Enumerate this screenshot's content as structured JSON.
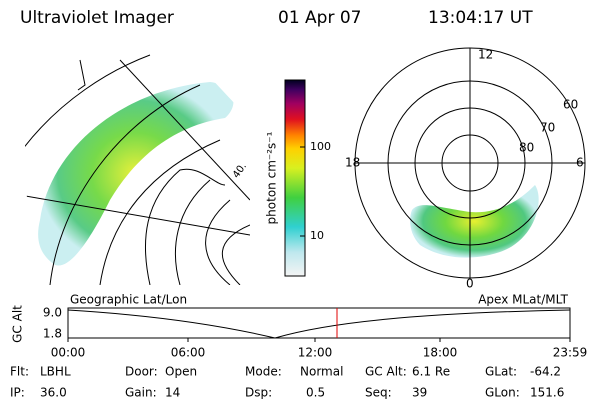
{
  "header": {
    "instrument": "Ultraviolet Imager",
    "date": "01 Apr 07",
    "time": "13:04:17 UT"
  },
  "geo_panel": {
    "labels": [
      "40."
    ]
  },
  "colorbar": {
    "label": "photon cm⁻²s⁻¹",
    "ticks": [
      "100",
      "10"
    ]
  },
  "polar_panel": {
    "mlt_labels": [
      "12",
      "18",
      "6",
      "0"
    ],
    "mlat_labels": [
      "60",
      "70",
      "80"
    ]
  },
  "timeline": {
    "left_title": "Geographic Lat/Lon",
    "right_title": "Apex MLat/MLT",
    "axis_label": "GC Alt",
    "yticks": [
      "9.0",
      "1.8"
    ],
    "xticks": [
      "00:00",
      "06:00",
      "12:00",
      "18:00",
      "23:59"
    ]
  },
  "footer": {
    "rows": [
      [
        {
          "label": "Flt:",
          "value": "LBHL"
        },
        {
          "label": "Door:",
          "value": "Open"
        },
        {
          "label": "Mode:",
          "value": "Normal"
        },
        {
          "label": "GC Alt:",
          "value": "6.1 Re"
        },
        {
          "label": "GLat:",
          "value": "-64.2"
        }
      ],
      [
        {
          "label": "IP:",
          "value": "36.0"
        },
        {
          "label": "Gain:",
          "value": "14"
        },
        {
          "label": "Dsp:",
          "value": "0.5"
        },
        {
          "label": "Seq:",
          "value": "39"
        },
        {
          "label": "GLon:",
          "value": "151.6"
        }
      ]
    ]
  }
}
